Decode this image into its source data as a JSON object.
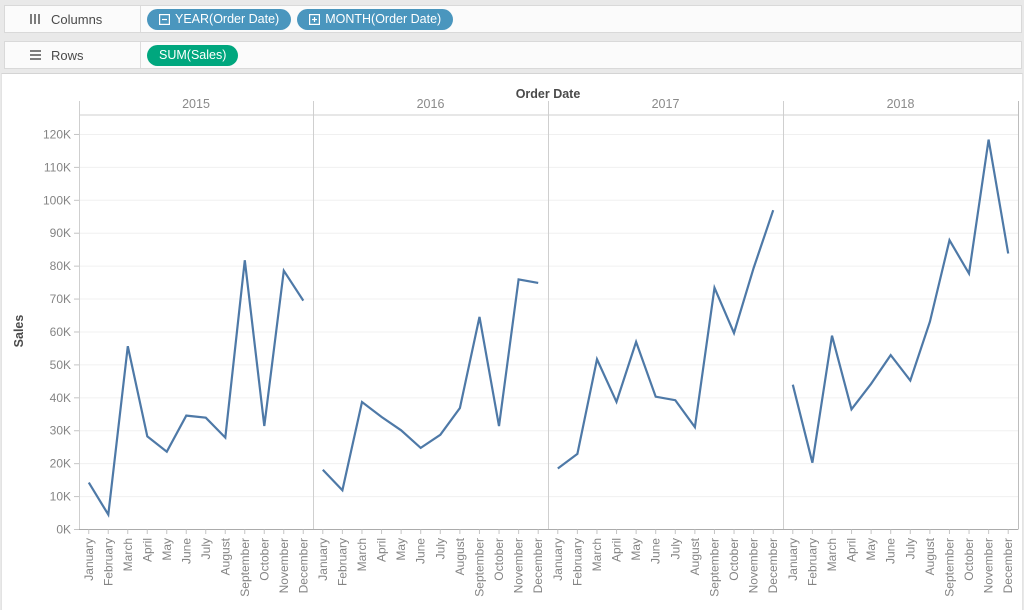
{
  "shelves": {
    "columns_label": "Columns",
    "rows_label": "Rows",
    "columns_pills": [
      {
        "label": "YEAR(Order Date)",
        "icon": "collapse-minus-icon"
      },
      {
        "label": "MONTH(Order Date)",
        "icon": "expand-plus-icon"
      }
    ],
    "rows_pills": [
      {
        "label": "SUM(Sales)"
      }
    ]
  },
  "colors": {
    "pill_blue": "#4A96BE",
    "pill_green": "#00A77E",
    "line_blue": "#4E79A7",
    "label_gray": "#848484",
    "dark_text": "#4a4a4a",
    "gridline": "#f0f0f0",
    "panel_border": "#cfcfcf",
    "axis_line": "#ababab",
    "tick_mark": "#c4c4c4"
  },
  "chart_data": {
    "type": "line",
    "title": "Order Date",
    "ylabel": "Sales",
    "xlabel": "",
    "legend": "none",
    "grid": true,
    "ylim": [
      0,
      126000
    ],
    "y_tick_values": [
      0,
      10000,
      20000,
      30000,
      40000,
      50000,
      60000,
      70000,
      80000,
      90000,
      100000,
      110000,
      120000
    ],
    "y_tick_labels": [
      "0K",
      "10K",
      "20K",
      "30K",
      "40K",
      "50K",
      "60K",
      "70K",
      "80K",
      "90K",
      "100K",
      "110K",
      "120K"
    ],
    "panels": [
      "2015",
      "2016",
      "2017",
      "2018"
    ],
    "categories": [
      "January",
      "February",
      "March",
      "April",
      "May",
      "June",
      "July",
      "August",
      "September",
      "October",
      "November",
      "December"
    ],
    "series": [
      {
        "name": "2015",
        "values": [
          14237,
          4520,
          55691,
          28295,
          23648,
          34595,
          33946,
          27909,
          81777,
          31453,
          78629,
          69545
        ]
      },
      {
        "name": "2016",
        "values": [
          18174,
          11951,
          38726,
          34195,
          30131,
          24797,
          28765,
          36898,
          64595,
          31404,
          75973,
          74920
        ]
      },
      {
        "name": "2017",
        "values": [
          18542,
          22978,
          51716,
          38750,
          56988,
          40344,
          39262,
          31115,
          73410,
          59687,
          79412,
          96999
        ]
      },
      {
        "name": "2018",
        "values": [
          43971,
          20301,
          58872,
          36522,
          44261,
          52982,
          45264,
          63121,
          87867,
          77777,
          118448,
          83829
        ]
      }
    ]
  }
}
